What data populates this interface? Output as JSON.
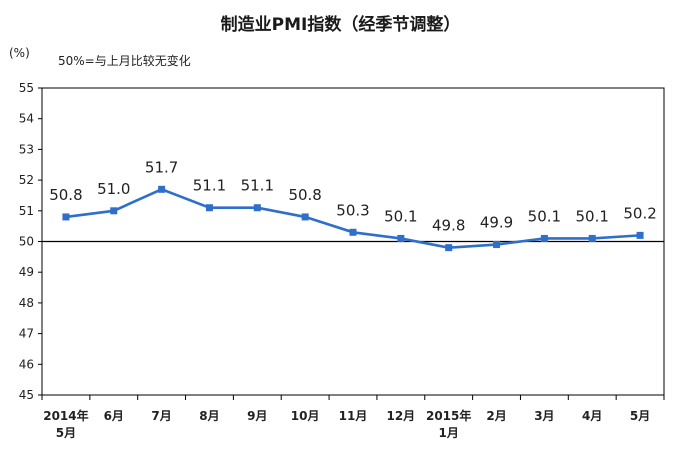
{
  "chart_data": {
    "type": "line",
    "title": "制造业PMI指数（经季节调整）",
    "ylabel": "(%)",
    "annotation": "50%=与上月比较无变化",
    "ylim": [
      45,
      55
    ],
    "yticks": [
      "45",
      "46",
      "47",
      "48",
      "49",
      "50",
      "51",
      "52",
      "53",
      "54",
      "55"
    ],
    "reference_line": 50,
    "categories": [
      [
        "2014年",
        "5月"
      ],
      [
        "6月"
      ],
      [
        "7月"
      ],
      [
        "8月"
      ],
      [
        "9月"
      ],
      [
        "10月"
      ],
      [
        "11月"
      ],
      [
        "12月"
      ],
      [
        "2015年",
        "1月"
      ],
      [
        "2月"
      ],
      [
        "3月"
      ],
      [
        "4月"
      ],
      [
        "5月"
      ]
    ],
    "values": [
      50.8,
      51.0,
      51.7,
      51.1,
      51.1,
      50.8,
      50.3,
      50.1,
      49.8,
      49.9,
      50.1,
      50.1,
      50.2
    ],
    "data_labels": [
      "50.8",
      "51.0",
      "51.7",
      "51.1",
      "51.1",
      "50.8",
      "50.3",
      "50.1",
      "49.8",
      "49.9",
      "50.1",
      "50.1",
      "50.2"
    ],
    "line_color": "#2f6fc9",
    "grid": false
  }
}
